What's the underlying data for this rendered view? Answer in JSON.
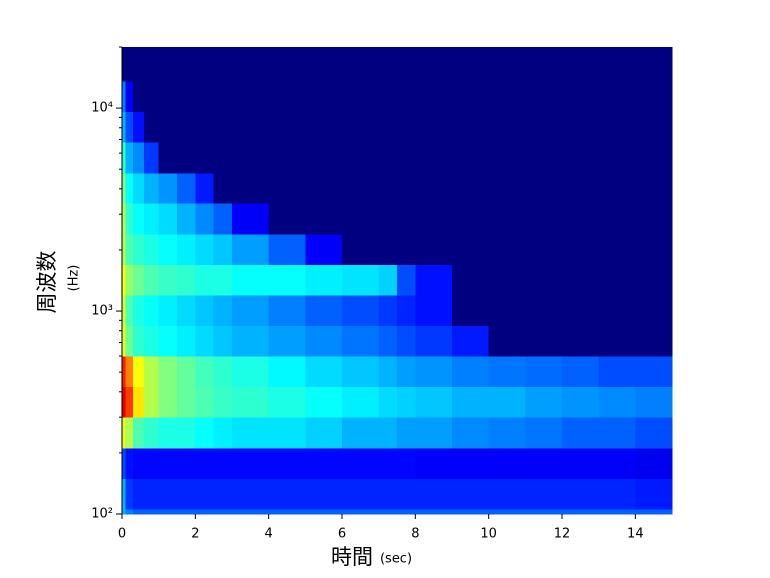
{
  "chart_data": {
    "type": "heatmap",
    "colormap": "jet",
    "xlabel": "時間",
    "xunit": "(sec)",
    "ylabel": "周波数",
    "yunit": "(Hz)",
    "ylog": true,
    "xlim": [
      0,
      15
    ],
    "xticks": [
      0,
      2,
      4,
      6,
      8,
      10,
      12,
      14
    ],
    "ylim": [
      100,
      20000
    ],
    "yticks": [
      {
        "value": 100,
        "label": "10²"
      },
      {
        "value": 1000,
        "label": "10³"
      },
      {
        "value": 10000,
        "label": "10⁴"
      }
    ],
    "yminorticks": [
      200,
      300,
      400,
      500,
      600,
      700,
      800,
      900,
      2000,
      3000,
      4000,
      5000,
      6000,
      7000,
      8000,
      9000,
      20000
    ],
    "x": [
      0,
      0.1,
      0.3,
      0.6,
      1,
      1.5,
      2,
      2.5,
      3,
      4,
      5,
      6,
      7,
      7.5,
      8,
      9,
      10,
      11,
      12,
      13,
      14,
      15
    ],
    "y": [
      100,
      106,
      150,
      212,
      300,
      425,
      600,
      850,
      1200,
      1700,
      2400,
      3400,
      4800,
      6800,
      9600,
      13600,
      20000
    ],
    "values": [
      [
        0.3,
        0.25,
        0.22,
        0.22,
        0.22,
        0.22,
        0.22,
        0.22,
        0.22,
        0.22,
        0.22,
        0.22,
        0.22,
        0.22,
        0.22,
        0.22,
        0.22,
        0.22,
        0.22,
        0.22,
        0.22
      ],
      [
        0.3,
        0.18,
        0.16,
        0.16,
        0.16,
        0.16,
        0.16,
        0.16,
        0.16,
        0.16,
        0.16,
        0.16,
        0.16,
        0.16,
        0.16,
        0.16,
        0.16,
        0.16,
        0.16,
        0.16,
        0.15
      ],
      [
        0.2,
        0.14,
        0.13,
        0.13,
        0.13,
        0.13,
        0.13,
        0.13,
        0.13,
        0.13,
        0.13,
        0.13,
        0.13,
        0.13,
        0.12,
        0.12,
        0.12,
        0.12,
        0.12,
        0.12,
        0.11
      ],
      [
        0.6,
        0.55,
        0.45,
        0.42,
        0.4,
        0.4,
        0.38,
        0.36,
        0.35,
        0.35,
        0.33,
        0.3,
        0.3,
        0.28,
        0.28,
        0.26,
        0.25,
        0.24,
        0.22,
        0.22,
        0.2
      ],
      [
        0.9,
        0.82,
        0.65,
        0.55,
        0.5,
        0.47,
        0.45,
        0.43,
        0.42,
        0.4,
        0.38,
        0.36,
        0.34,
        0.33,
        0.32,
        0.3,
        0.3,
        0.28,
        0.27,
        0.26,
        0.25
      ],
      [
        0.85,
        0.75,
        0.62,
        0.55,
        0.5,
        0.47,
        0.44,
        0.42,
        0.4,
        0.37,
        0.34,
        0.32,
        0.3,
        0.28,
        0.27,
        0.25,
        0.24,
        0.23,
        0.22,
        0.2,
        0.2
      ],
      [
        0.6,
        0.48,
        0.42,
        0.4,
        0.38,
        0.36,
        0.34,
        0.32,
        0.3,
        0.28,
        0.26,
        0.24,
        0.22,
        0.2,
        0.18,
        0.15,
        0,
        0,
        0,
        0,
        0
      ],
      [
        0.58,
        0.45,
        0.4,
        0.38,
        0.36,
        0.34,
        0.32,
        0.3,
        0.28,
        0.25,
        0.22,
        0.2,
        0.18,
        0.16,
        0.14,
        0,
        0,
        0,
        0,
        0,
        0
      ],
      [
        0.62,
        0.52,
        0.48,
        0.45,
        0.43,
        0.42,
        0.4,
        0.4,
        0.38,
        0.38,
        0.36,
        0.35,
        0.33,
        0.2,
        0.14,
        0,
        0,
        0,
        0,
        0,
        0
      ],
      [
        0.55,
        0.45,
        0.42,
        0.4,
        0.38,
        0.36,
        0.34,
        0.32,
        0.28,
        0.22,
        0.12,
        0,
        0,
        0,
        0,
        0,
        0,
        0,
        0,
        0,
        0
      ],
      [
        0.55,
        0.42,
        0.38,
        0.36,
        0.34,
        0.3,
        0.26,
        0.22,
        0.12,
        0,
        0,
        0,
        0,
        0,
        0,
        0,
        0,
        0,
        0,
        0,
        0
      ],
      [
        0.5,
        0.38,
        0.34,
        0.3,
        0.27,
        0.22,
        0.15,
        0,
        0,
        0,
        0,
        0,
        0,
        0,
        0,
        0,
        0,
        0,
        0,
        0,
        0
      ],
      [
        0.42,
        0.3,
        0.26,
        0.18,
        0,
        0,
        0,
        0,
        0,
        0,
        0,
        0,
        0,
        0,
        0,
        0,
        0,
        0,
        0,
        0,
        0
      ],
      [
        0.3,
        0.2,
        0.14,
        0,
        0,
        0,
        0,
        0,
        0,
        0,
        0,
        0,
        0,
        0,
        0,
        0,
        0,
        0,
        0,
        0,
        0
      ],
      [
        0.25,
        0.12,
        0,
        0,
        0,
        0,
        0,
        0,
        0,
        0,
        0,
        0,
        0,
        0,
        0,
        0,
        0,
        0,
        0,
        0,
        0
      ],
      [
        0,
        0,
        0,
        0,
        0,
        0,
        0,
        0,
        0,
        0,
        0,
        0,
        0,
        0,
        0,
        0,
        0,
        0,
        0,
        0,
        0
      ]
    ]
  }
}
